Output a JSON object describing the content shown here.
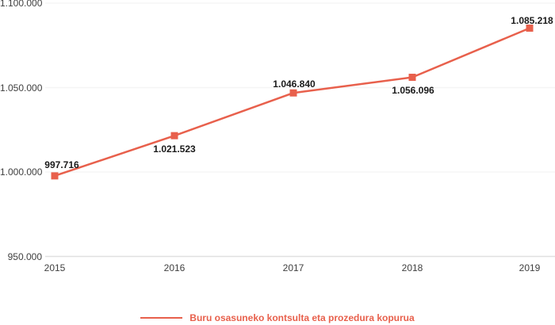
{
  "chart_data": {
    "type": "line",
    "title": "",
    "xlabel": "",
    "ylabel": "",
    "categories": [
      "2015",
      "2016",
      "2017",
      "2018",
      "2019"
    ],
    "series": [
      {
        "name": "Buru osasuneko kontsulta eta prozedura kopurua",
        "values": [
          997716,
          1021523,
          1046840,
          1056096,
          1085218
        ],
        "value_labels": [
          "997.716",
          "1.021.523",
          "1.046.840",
          "1.056.096",
          "1.085.218"
        ],
        "label_positions": [
          "above",
          "below",
          "above",
          "below",
          "above"
        ],
        "color": "#e8604c",
        "marker": "square"
      }
    ],
    "legend": {
      "label": "Buru osasuneko kontsulta eta prozedura kopurua",
      "position": "bottom-center",
      "color": "#e8604c"
    },
    "ylim": [
      950000,
      1100000
    ],
    "yticks": [
      {
        "value": 1100000,
        "label": "1.100.000"
      },
      {
        "value": 1050000,
        "label": "1.050.000"
      },
      {
        "value": 1000000,
        "label": "1.000.000"
      },
      {
        "value": 950000,
        "label": "950.000"
      }
    ],
    "grid": "horizontal",
    "colors": {
      "line": "#e8604c",
      "grid": "#f5f5f5",
      "axis_line": "#e0e0e0",
      "tick_text": "#3f3f3f",
      "data_label_text": "#1a1a1a",
      "background": "#ffffff"
    }
  }
}
